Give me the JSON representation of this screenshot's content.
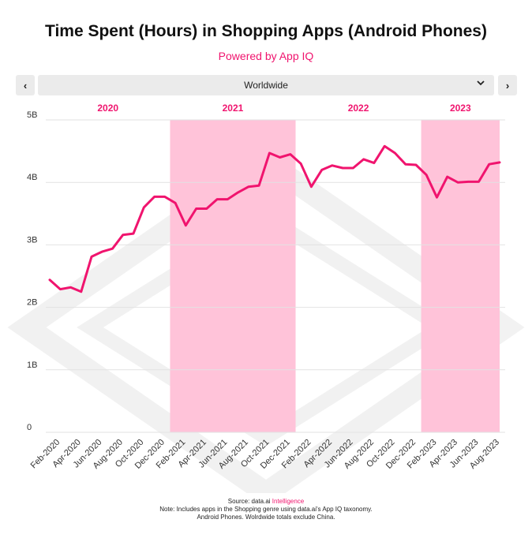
{
  "title": "Time Spent (Hours) in Shopping Apps (Android Phones)",
  "subtitle": "Powered by App IQ",
  "nav": {
    "prev_glyph": "‹",
    "next_glyph": "›"
  },
  "region": {
    "selected": "Worldwide",
    "icon": "chevron-down-icon"
  },
  "footer": {
    "source_prefix": "Source: data.ai ",
    "source_accent": "Intelligence",
    "note_line1": "Note: Includes apps in the Shopping genre using data.ai's App IQ taxonomy.",
    "note_line2": "Android Phones. Wolrdwide totals exclude China."
  },
  "colors": {
    "accent": "#f0146e",
    "band": "#ffc3d9",
    "grid": "#e2e2e2"
  },
  "chart_data": {
    "type": "line",
    "title": "Time Spent (Hours) in Shopping Apps (Android Phones)",
    "xlabel": "",
    "ylabel": "",
    "ylim": [
      0,
      5
    ],
    "y_unit": "B",
    "yticks": [
      {
        "value": 0,
        "label": "0"
      },
      {
        "value": 1,
        "label": "1B"
      },
      {
        "value": 2,
        "label": "2B"
      },
      {
        "value": 3,
        "label": "3B"
      },
      {
        "value": 4,
        "label": "4B"
      },
      {
        "value": 5,
        "label": "5B"
      }
    ],
    "grid": true,
    "year_bands": [
      {
        "label": "2020",
        "start": "Jan-2020",
        "end": "Dec-2020",
        "shaded": false
      },
      {
        "label": "2021",
        "start": "Jan-2021",
        "end": "Dec-2021",
        "shaded": true
      },
      {
        "label": "2022",
        "start": "Jan-2022",
        "end": "Dec-2022",
        "shaded": false
      },
      {
        "label": "2023",
        "start": "Jan-2023",
        "end": "Aug-2023",
        "shaded": true
      }
    ],
    "tick_labels": [
      "Feb-2020",
      "Apr-2020",
      "Jun-2020",
      "Aug-2020",
      "Oct-2020",
      "Dec-2020",
      "Feb-2021",
      "Apr-2021",
      "Jun-2021",
      "Aug-2021",
      "Oct-2021",
      "Dec-2021",
      "Feb-2022",
      "Apr-2022",
      "Jun-2022",
      "Aug-2022",
      "Oct-2022",
      "Dec-2022",
      "Feb-2023",
      "Apr-2023",
      "Jun-2023",
      "Aug-2023"
    ],
    "series": [
      {
        "color": "#f0146e",
        "x": [
          "Jan-2020",
          "Feb-2020",
          "Mar-2020",
          "Apr-2020",
          "May-2020",
          "Jun-2020",
          "Jul-2020",
          "Aug-2020",
          "Sep-2020",
          "Oct-2020",
          "Nov-2020",
          "Dec-2020",
          "Jan-2021",
          "Feb-2021",
          "Mar-2021",
          "Apr-2021",
          "May-2021",
          "Jun-2021",
          "Jul-2021",
          "Aug-2021",
          "Sep-2021",
          "Oct-2021",
          "Nov-2021",
          "Dec-2021",
          "Jan-2022",
          "Feb-2022",
          "Mar-2022",
          "Apr-2022",
          "May-2022",
          "Jun-2022",
          "Jul-2022",
          "Aug-2022",
          "Sep-2022",
          "Oct-2022",
          "Nov-2022",
          "Dec-2022",
          "Jan-2023",
          "Feb-2023",
          "Mar-2023",
          "Apr-2023",
          "May-2023",
          "Jun-2023",
          "Jul-2023",
          "Aug-2023"
        ],
        "values": [
          2.44,
          2.29,
          2.32,
          2.25,
          2.81,
          2.89,
          2.94,
          3.16,
          3.18,
          3.6,
          3.77,
          3.77,
          3.67,
          3.31,
          3.58,
          3.58,
          3.73,
          3.73,
          3.84,
          3.93,
          3.95,
          4.47,
          4.4,
          4.45,
          4.3,
          3.93,
          4.2,
          4.27,
          4.23,
          4.23,
          4.37,
          4.31,
          4.58,
          4.47,
          4.29,
          4.28,
          4.12,
          3.76,
          4.09,
          4.0,
          4.01,
          4.01,
          4.29,
          4.32
        ]
      }
    ]
  }
}
